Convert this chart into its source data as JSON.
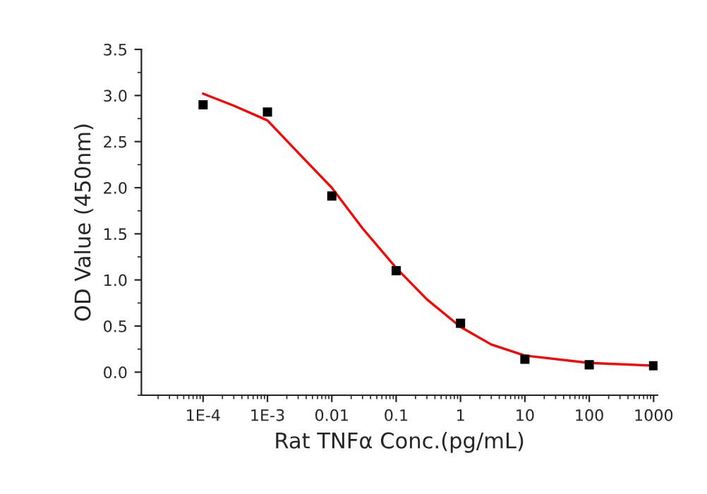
{
  "chart_data": {
    "type": "scatter",
    "xlabel": "Rat TNFα Conc.(pg/mL)",
    "ylabel": "OD Value (450nm)",
    "log": "x",
    "marker": "square",
    "grid": false,
    "xlim": [
      1.1e-05,
      1150
    ],
    "ylim": [
      -0.25,
      3.5
    ],
    "xticks": [
      {
        "value": 0.0001,
        "label": "1E-4"
      },
      {
        "value": 0.001,
        "label": "1E-3"
      },
      {
        "value": 0.01,
        "label": "0.01"
      },
      {
        "value": 0.1,
        "label": "0.1"
      },
      {
        "value": 1,
        "label": "1"
      },
      {
        "value": 10,
        "label": "10"
      },
      {
        "value": 100,
        "label": "100"
      },
      {
        "value": 1000,
        "label": "1000"
      }
    ],
    "yticks": [
      {
        "value": 0,
        "label": "0.0"
      },
      {
        "value": 0.5,
        "label": "0.5"
      },
      {
        "value": 1,
        "label": "1.0"
      },
      {
        "value": 1.5,
        "label": "1.5"
      },
      {
        "value": 2,
        "label": "2.0"
      },
      {
        "value": 2.5,
        "label": "2.5"
      },
      {
        "value": 3,
        "label": "3.0"
      },
      {
        "value": 3.5,
        "label": "3.5"
      }
    ],
    "series": [
      {
        "color": "#000000",
        "x": [
          0.0001,
          0.001,
          0.01,
          0.1,
          1,
          10,
          100,
          1000
        ],
        "values": [
          2.9,
          2.82,
          1.91,
          1.1,
          0.53,
          0.14,
          0.08,
          0.07
        ]
      },
      {
        "type": "line",
        "color": "#ff0000",
        "marker": "none",
        "x": [
          0.0001,
          0.0003,
          0.001,
          0.003,
          0.01,
          0.03,
          0.1,
          0.3,
          1,
          3,
          10,
          100,
          1000
        ],
        "values": [
          3.02,
          2.89,
          2.73,
          2.38,
          2.0,
          1.56,
          1.13,
          0.79,
          0.49,
          0.3,
          0.18,
          0.1,
          0.07
        ]
      }
    ]
  }
}
